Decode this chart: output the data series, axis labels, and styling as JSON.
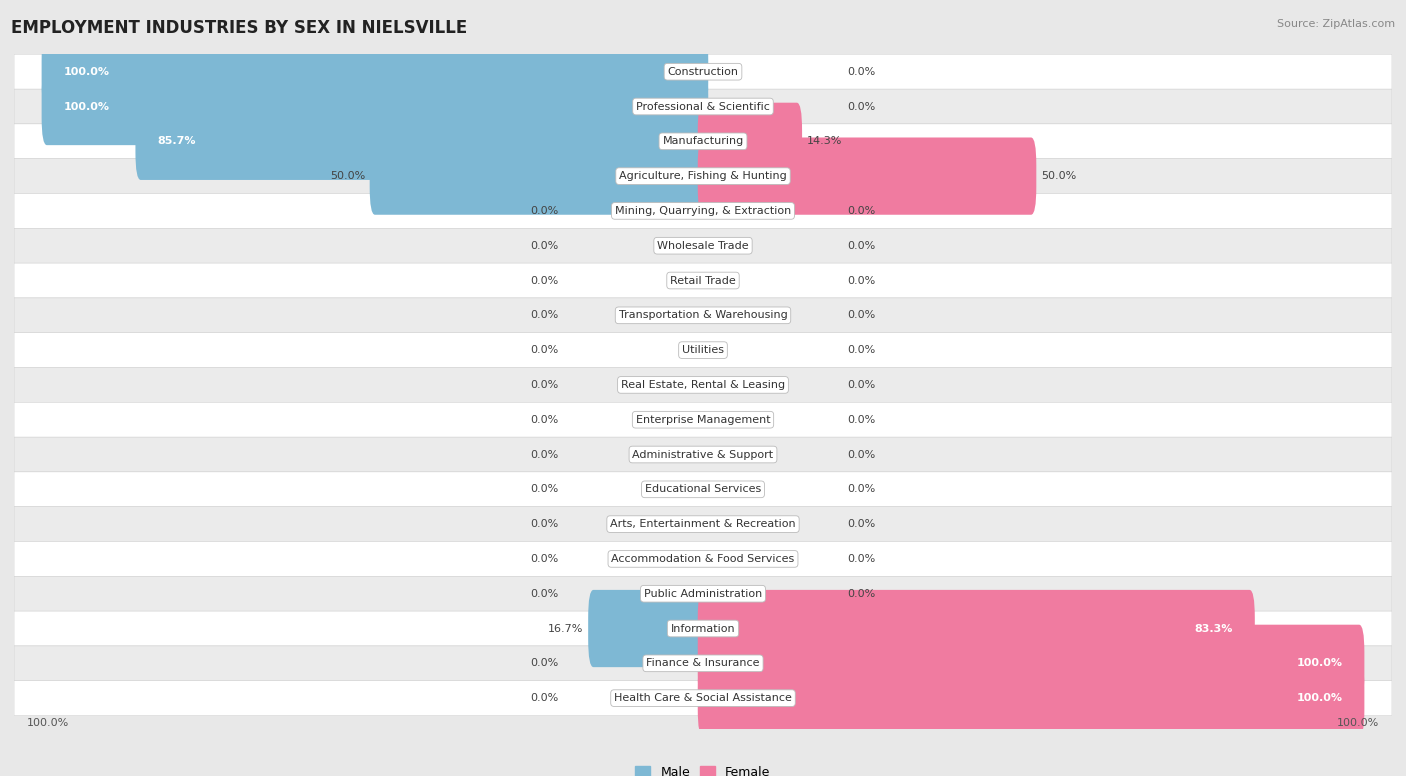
{
  "title": "EMPLOYMENT INDUSTRIES BY SEX IN NIELSVILLE",
  "source": "Source: ZipAtlas.com",
  "categories": [
    "Construction",
    "Professional & Scientific",
    "Manufacturing",
    "Agriculture, Fishing & Hunting",
    "Mining, Quarrying, & Extraction",
    "Wholesale Trade",
    "Retail Trade",
    "Transportation & Warehousing",
    "Utilities",
    "Real Estate, Rental & Leasing",
    "Enterprise Management",
    "Administrative & Support",
    "Educational Services",
    "Arts, Entertainment & Recreation",
    "Accommodation & Food Services",
    "Public Administration",
    "Information",
    "Finance & Insurance",
    "Health Care & Social Assistance"
  ],
  "male": [
    100.0,
    100.0,
    85.7,
    50.0,
    0.0,
    0.0,
    0.0,
    0.0,
    0.0,
    0.0,
    0.0,
    0.0,
    0.0,
    0.0,
    0.0,
    0.0,
    16.7,
    0.0,
    0.0
  ],
  "female": [
    0.0,
    0.0,
    14.3,
    50.0,
    0.0,
    0.0,
    0.0,
    0.0,
    0.0,
    0.0,
    0.0,
    0.0,
    0.0,
    0.0,
    0.0,
    0.0,
    83.3,
    100.0,
    100.0
  ],
  "male_color": "#7EB8D4",
  "female_color": "#F07BA0",
  "bg_color": "#E8E8E8",
  "row_colors": [
    "#FFFFFF",
    "#EBEBEB"
  ],
  "bar_height": 0.62,
  "title_fontsize": 12,
  "label_fontsize": 8,
  "category_fontsize": 8,
  "source_fontsize": 8
}
